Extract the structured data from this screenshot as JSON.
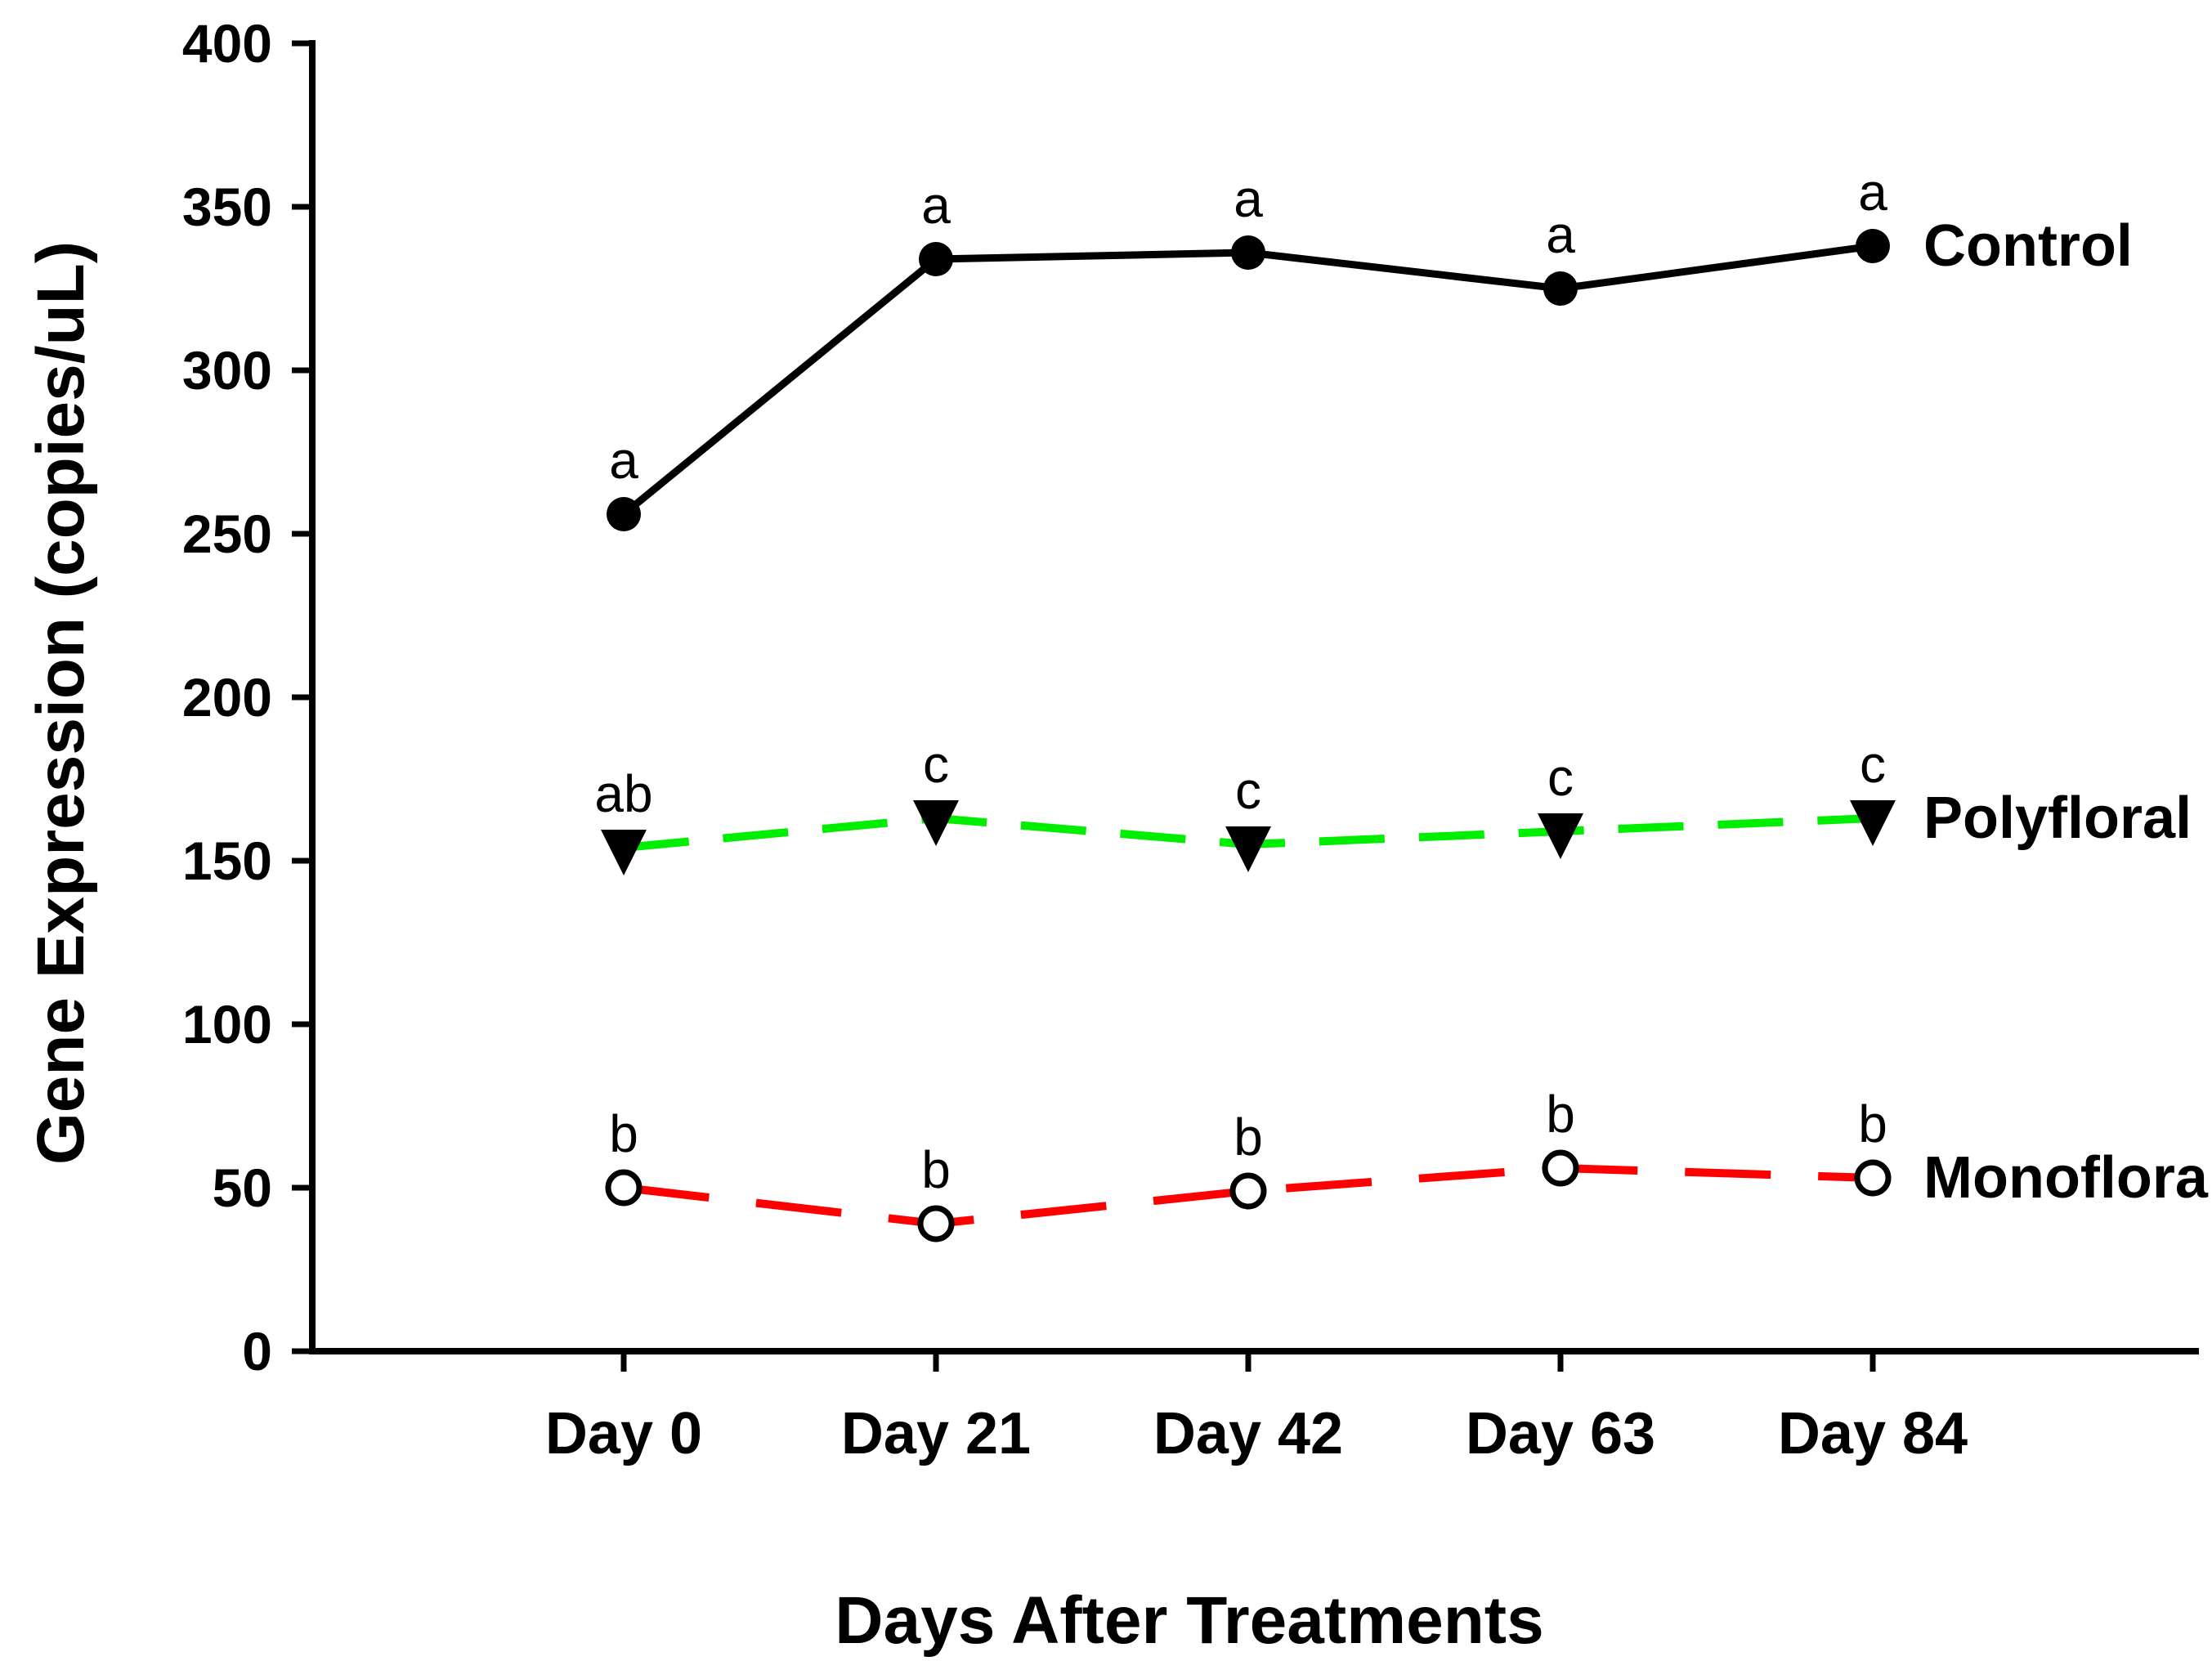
{
  "chart_data": {
    "type": "line",
    "title": "",
    "xlabel": "Days After Treatments",
    "ylabel": "Gene Expression (copies/uL)",
    "x_categories": [
      "Day 0",
      "Day 21",
      "Day 42",
      "Day 63",
      "Day 84"
    ],
    "ylim": [
      0,
      400
    ],
    "yticks": [
      0,
      50,
      100,
      150,
      200,
      250,
      300,
      350,
      400
    ],
    "grid": false,
    "legend_position": "right-of-last-point",
    "colors": {
      "control": "#000000",
      "polyfloral": "#00ee00",
      "monofloral": "#ff0000",
      "background": "#ffffff"
    },
    "series": [
      {
        "name": "Control",
        "color": "#000000",
        "line_style": "solid",
        "marker": "filled-circle",
        "values": [
          256,
          334,
          336,
          325,
          338
        ],
        "point_labels": [
          "a",
          "a",
          "a",
          "a",
          "a"
        ]
      },
      {
        "name": "Polyfloral",
        "color": "#00ee00",
        "line_style": "long-dash",
        "marker": "filled-triangle-down",
        "values": [
          154,
          163,
          155,
          159,
          163
        ],
        "point_labels": [
          "ab",
          "c",
          "c",
          "c",
          "c"
        ]
      },
      {
        "name": "Monofloral",
        "color": "#ff0000",
        "line_style": "long-dash",
        "marker": "open-circle",
        "values": [
          50,
          39,
          49,
          56,
          53
        ],
        "point_labels": [
          "b",
          "b",
          "b",
          "b",
          "b"
        ]
      }
    ]
  }
}
